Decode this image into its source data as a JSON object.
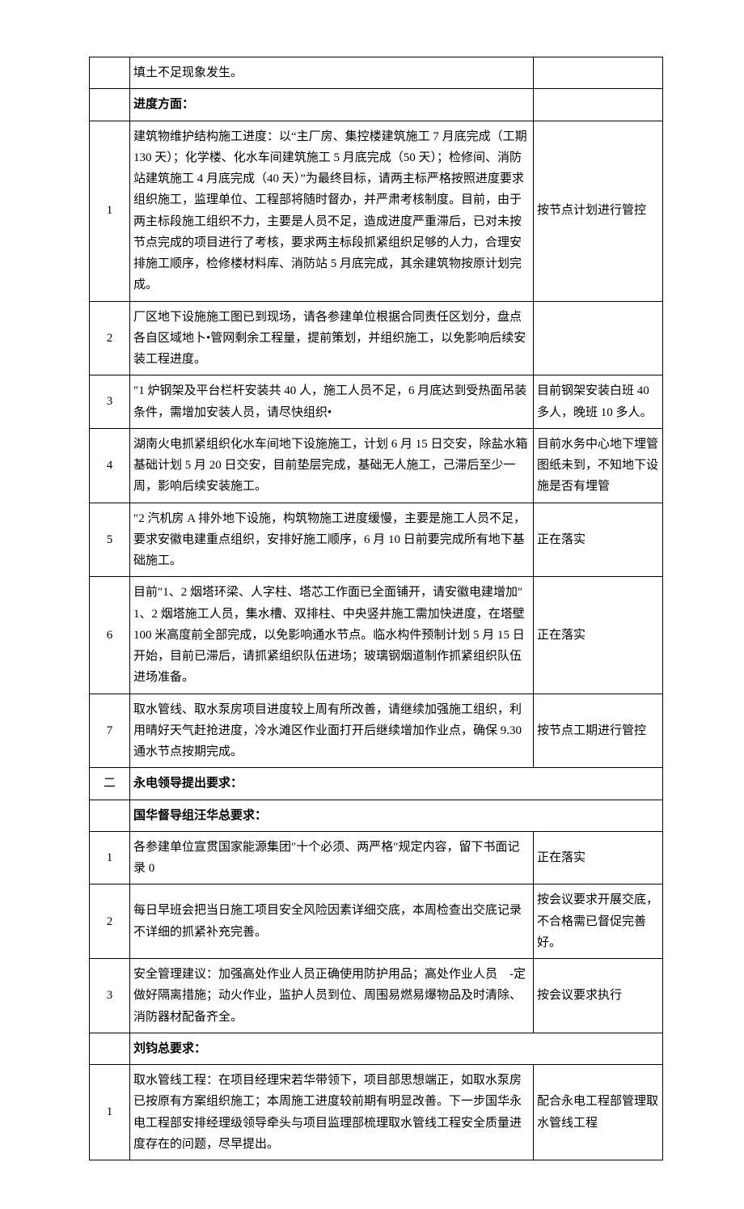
{
  "columns": {
    "widths": [
      "50px",
      "auto",
      "160px"
    ]
  },
  "rows": [
    {
      "num": "",
      "content": "填土不足现象发生。",
      "status": "",
      "span": false
    },
    {
      "num": "",
      "content": "进度方面：",
      "status": "",
      "bold": true,
      "span": false
    },
    {
      "num": "1",
      "content": "建筑物维护结构施工进度：以“主厂房、集控楼建筑施工 7 月底完成（工期 130 天）；化学楼、化水车间建筑施工 5 月底完成（50 天）；检修间、消防站建筑施工 4 月底完成（40 天）”为最终目标，请两主标严格按照进度要求组织施工，监理单位、工程部将随时督办，并严肃考核制度。目前，由于两主标段施工组织不力，主要是人员不足，造成进度严重滞后，已对未按节点完成的项目进行了考核，要求两主标段抓紧组织足够的人力，合理安排施工顺序，检修楼材料库、消防站 5 月底完成，其余建筑物按原计划完成。",
      "status": "按节点计划进行管控"
    },
    {
      "num": "2",
      "content": "厂区地下设施施工图已到现场，请各参建单位根据合同责任区划分，盘点各自区域地卜•管网剩余工程量，提前策划，并组织施工，以免影响后续安装工程进度。",
      "status": ""
    },
    {
      "num": "3",
      "content": "″1 炉钢架及平台栏杆安装共 40 人，施工人员不足，6 月底达到受热面吊装条件，需增加安装人员，请尽快组织•",
      "status": "目前钢架安装白班 40 多人，晚班 10 多人。"
    },
    {
      "num": "4",
      "content": "湖南火电抓紧组织化水车间地下设施施工，计划 6 月 15 日交安，除盐水箱基础计划 5 月 20 日交安，目前垫层完成，基础无人施工，己滞后至少一周，影响后续安装施工。",
      "status": "目前水务中心地下埋管图纸未到，不知地下设施是否有埋管"
    },
    {
      "num": "5",
      "content": "″2 汽机房 A 排外地下设施，构筑物施工进度缓慢，主要是施工人员不足，要求安徽电建重点组织，安排好施工顺序，6 月 10 日前要完成所有地下基础施工。",
      "status": "正在落实"
    },
    {
      "num": "6",
      "content": "目前″1、2 烟塔环梁、人字柱、塔芯工作面已全面铺开，请安徽电建增加″1、2 烟塔施工人员，集水槽、双排柱、中央竖井施工需加快进度，在塔壁 100 米高度前全部完成，以免影响通水节点。临水构件预制计划 5 月 15 日开始，目前已滞后，请抓紧组织队伍进场；玻璃钢烟道制作抓紧组织队伍进场准备。",
      "status": "正在落实"
    },
    {
      "num": "7",
      "content": "取水管线、取水泵房项目进度较上周有所改善，请继续加强施工组织，利用晴好天气赶抢进度，冷水滩区作业面打开后继续增加作业点，确保 9.30 通水节点按期完成。",
      "status": "按节点工期进行管控"
    },
    {
      "num": "二",
      "content": "永电领导提出要求：",
      "status": "",
      "bold": true,
      "span": true,
      "numcn": true
    },
    {
      "num": "",
      "content": "国华督导组汪华总要求：",
      "status": "",
      "bold": true,
      "span": true
    },
    {
      "num": "1",
      "content": "各参建单位宣贯国家能源集团″十个必须、两严格″规定内容，留下书面记录 0",
      "status": "正在落实"
    },
    {
      "num": "2",
      "content": "每日早班会把当日施工项目安全风险因素详细交底，本周检查出交底记录不详细的抓紧补充完善。",
      "status": "按会议要求开展交底，不合格需已督促完善好。"
    },
    {
      "num": "3",
      "content": "安全管理建议：加强高处作业人员正确使用防护用品；高处作业人员　-定做好隔离措施；动火作业，监护人员到位、周围易燃易爆物品及时清除、消防器材配备齐全。",
      "status": "按会议要求执行"
    },
    {
      "num": "",
      "content": "刘钧总要求：",
      "status": "",
      "bold": true,
      "span": true
    },
    {
      "num": "1",
      "content": "取水管线工程：在项目经理宋若华带领下，项目部思想端正，如取水泵房已按原有方案组织施工；本周施工进度较前期有明显改善。下一步国华永电工程部安排经理级领导牵头与项目监理部梳理取水管线工程安全质量进度存在的问题，尽早提出。",
      "status": "配合永电工程部管理取水管线工程"
    }
  ]
}
